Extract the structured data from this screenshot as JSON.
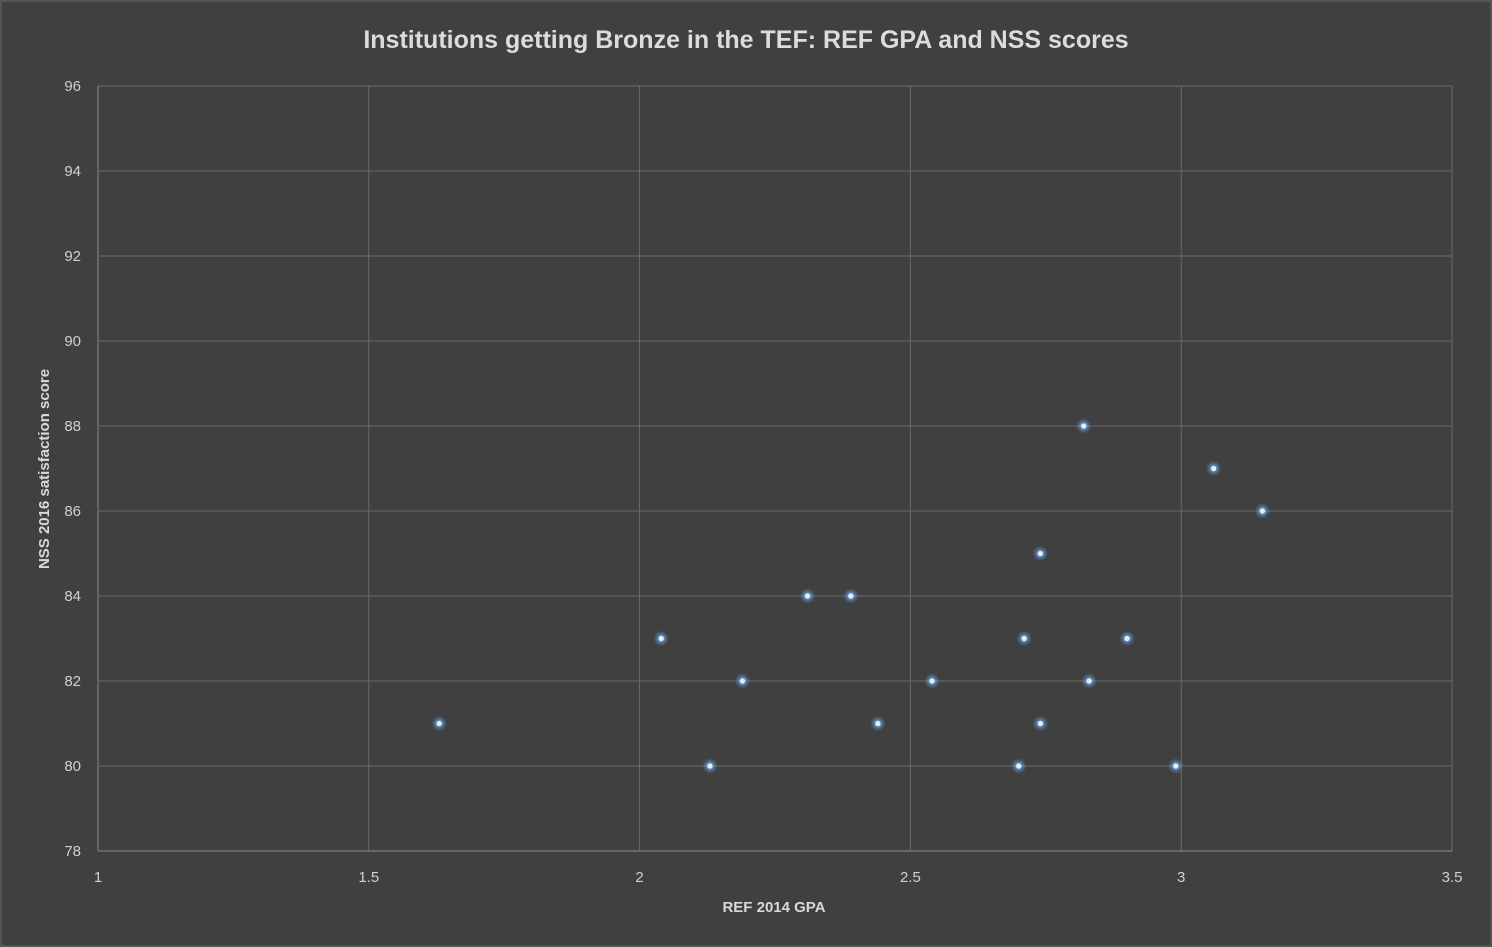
{
  "chart_data": {
    "type": "scatter",
    "title": "Institutions getting Bronze in the TEF: REF GPA and NSS scores",
    "xlabel": "REF 2014 GPA",
    "ylabel": "NSS 2016 satisfaction score",
    "xlim": [
      1,
      3.5
    ],
    "ylim": [
      78,
      96
    ],
    "xticks": [
      "1",
      "1.5",
      "2",
      "2.5",
      "3",
      "3.5"
    ],
    "yticks": [
      "78",
      "80",
      "82",
      "84",
      "86",
      "88",
      "90",
      "92",
      "94",
      "96"
    ],
    "grid": true,
    "colors": {
      "background": "#404040",
      "point": "#8ec3ff",
      "point_core": "#dcefff",
      "grid": "#6a6a6a"
    },
    "points": [
      {
        "x": 1.63,
        "y": 81
      },
      {
        "x": 2.04,
        "y": 83
      },
      {
        "x": 2.13,
        "y": 80
      },
      {
        "x": 2.19,
        "y": 82
      },
      {
        "x": 2.31,
        "y": 84
      },
      {
        "x": 2.39,
        "y": 84
      },
      {
        "x": 2.44,
        "y": 81
      },
      {
        "x": 2.54,
        "y": 82
      },
      {
        "x": 2.7,
        "y": 80
      },
      {
        "x": 2.71,
        "y": 83
      },
      {
        "x": 2.74,
        "y": 85
      },
      {
        "x": 2.74,
        "y": 81
      },
      {
        "x": 2.82,
        "y": 88
      },
      {
        "x": 2.83,
        "y": 82
      },
      {
        "x": 2.9,
        "y": 83
      },
      {
        "x": 2.99,
        "y": 80
      },
      {
        "x": 3.06,
        "y": 87
      },
      {
        "x": 3.15,
        "y": 86
      }
    ]
  }
}
